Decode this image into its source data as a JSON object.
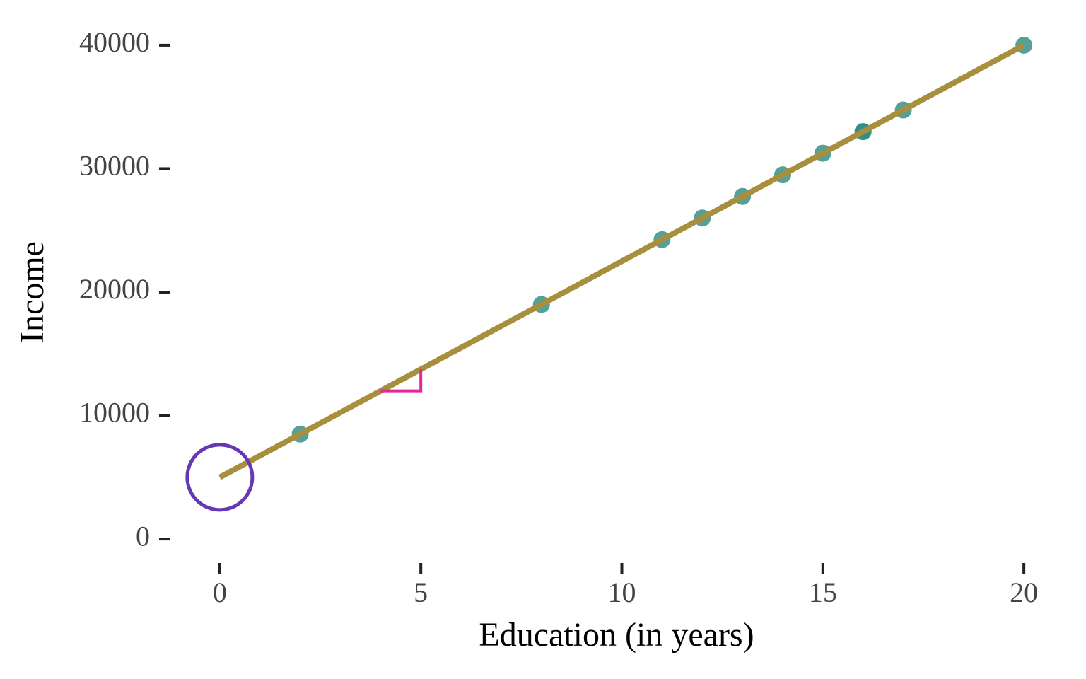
{
  "chart_data": {
    "type": "scatter",
    "x_label": "Education (in years)",
    "y_label": "Income",
    "x": [
      2,
      8,
      11,
      12,
      13,
      14,
      15,
      16,
      16,
      17,
      20
    ],
    "values": [
      8500,
      19000,
      24250,
      26000,
      27750,
      29500,
      31250,
      33000,
      33000,
      34750,
      40000
    ],
    "color": "#2b8a80",
    "fit": {
      "x": [
        0,
        20
      ],
      "y": [
        5000,
        40000
      ],
      "color": "#a88f3e"
    },
    "intercept_marker": {
      "x": 0,
      "y": 5000,
      "color": "#6538b5"
    },
    "slope_marker": {
      "x": [
        4,
        5,
        5
      ],
      "y": [
        12000,
        12000,
        13750
      ],
      "color": "#e2289a"
    },
    "xlim": [
      -1,
      21
    ],
    "ylim": [
      -2000,
      42000
    ],
    "xticks": [
      0,
      5,
      10,
      15,
      20
    ],
    "yticks": [
      0,
      10000,
      20000,
      30000,
      40000
    ],
    "grid": false
  }
}
